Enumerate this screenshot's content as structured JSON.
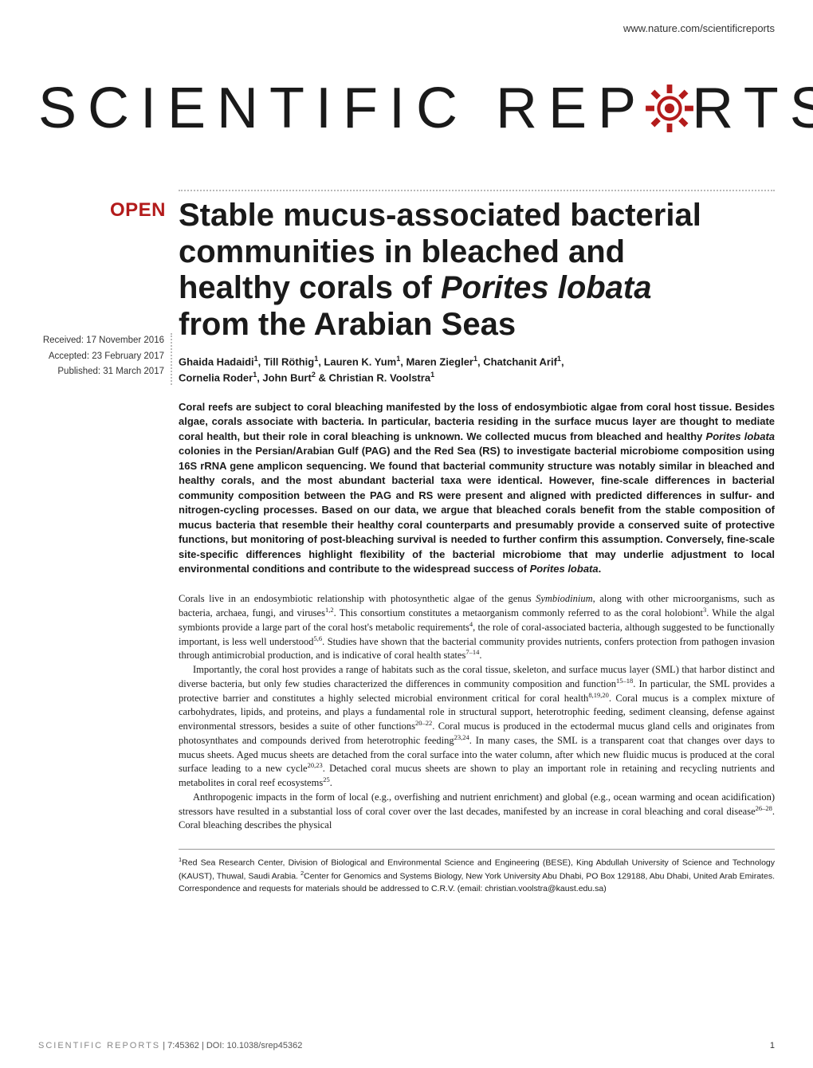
{
  "header": {
    "url": "www.nature.com/scientificreports"
  },
  "logo": {
    "part1": "SCIENTIFIC",
    "part2": "REP",
    "part3": "RTS",
    "gear_color": "#b31b1b"
  },
  "badge": {
    "open": "OPEN"
  },
  "dates": {
    "received": "Received: 17 November 2016",
    "accepted": "Accepted: 23 February 2017",
    "published": "Published: 31 March 2017"
  },
  "article": {
    "title_l1": "Stable mucus-associated bacterial",
    "title_l2": "communities in bleached and",
    "title_l3_pre": "healthy corals of ",
    "title_l3_em": "Porites lobata",
    "title_l4": "from the Arabian Seas",
    "authors_line1_html": "Ghaida Hadaidi<sup>1</sup>, Till Röthig<sup>1</sup>, Lauren K. Yum<sup>1</sup>, Maren Ziegler<sup>1</sup>, Chatchanit Arif<sup>1</sup>,",
    "authors_line2_html": "Cornelia Roder<sup>1</sup>, John Burt<sup>2</sup> & Christian R. Voolstra<sup>1</sup>",
    "abstract": "Coral reefs are subject to coral bleaching manifested by the loss of endosymbiotic algae from coral host tissue. Besides algae, corals associate with bacteria. In particular, bacteria residing in the surface mucus layer are thought to mediate coral health, but their role in coral bleaching is unknown. We collected mucus from bleached and healthy <em>Porites lobata</em> colonies in the Persian/Arabian Gulf (PAG) and the Red Sea (RS) to investigate bacterial microbiome composition using 16S rRNA gene amplicon sequencing. We found that bacterial community structure was notably similar in bleached and healthy corals, and the most abundant bacterial taxa were identical. However, fine-scale differences in bacterial community composition between the PAG and RS were present and aligned with predicted differences in sulfur- and nitrogen-cycling processes. Based on our data, we argue that bleached corals benefit from the stable composition of mucus bacteria that resemble their healthy coral counterparts and presumably provide a conserved suite of protective functions, but monitoring of post-bleaching survival is needed to further confirm this assumption. Conversely, fine-scale site-specific differences highlight flexibility of the bacterial microbiome that may underlie adjustment to local environmental conditions and contribute to the widespread success of <em>Porites lobata</em>.",
    "para1": "Corals live in an endosymbiotic relationship with photosynthetic algae of the genus <em>Symbiodinium</em>, along with other microorganisms, such as bacteria, archaea, fungi, and viruses<sup>1,2</sup>. This consortium constitutes a metaorganism commonly referred to as the coral holobiont<sup>3</sup>. While the algal symbionts provide a large part of the coral host's metabolic requirements<sup>4</sup>, the role of coral-associated bacteria, although suggested to be functionally important, is less well understood<sup>5,6</sup>. Studies have shown that the bacterial community provides nutrients, confers protection from pathogen invasion through antimicrobial production, and is indicative of coral health states<sup>7–14</sup>.",
    "para2": "Importantly, the coral host provides a range of habitats such as the coral tissue, skeleton, and surface mucus layer (SML) that harbor distinct and diverse bacteria, but only few studies characterized the differences in community composition and function<sup>15–18</sup>. In particular, the SML provides a protective barrier and constitutes a highly selected microbial environment critical for coral health<sup>8,19,20</sup>. Coral mucus is a complex mixture of carbohydrates, lipids, and proteins, and plays a fundamental role in structural support, heterotrophic feeding, sediment cleansing, defense against environmental stressors, besides a suite of other functions<sup>20–22</sup>. Coral mucus is produced in the ectodermal mucus gland cells and originates from photosynthates and compounds derived from heterotrophic feeding<sup>23,24</sup>. In many cases, the SML is a transparent coat that changes over days to mucus sheets. Aged mucus sheets are detached from the coral surface into the water column, after which new fluidic mucus is produced at the coral surface leading to a new cycle<sup>20,23</sup>. Detached coral mucus sheets are shown to play an important role in retaining and recycling nutrients and metabolites in coral reef ecosystems<sup>25</sup>.",
    "para3": "Anthropogenic impacts in the form of local (e.g., overfishing and nutrient enrichment) and global (e.g., ocean warming and ocean acidification) stressors have resulted in a substantial loss of coral cover over the last decades, manifested by an increase in coral bleaching and coral disease<sup>26–28</sup>. Coral bleaching describes the physical",
    "affiliations": "<sup>1</sup>Red Sea Research Center, Division of Biological and Environmental Science and Engineering (BESE), King Abdullah University of Science and Technology (KAUST), Thuwal, Saudi Arabia. <sup>2</sup>Center for Genomics and Systems Biology, New York University Abu Dhabi, PO Box 129188, Abu Dhabi, United Arab Emirates. Correspondence and requests for materials should be addressed to C.R.V. (email: christian.voolstra@kaust.edu.sa)"
  },
  "footer": {
    "journal": "SCIENTIFIC REPORTS",
    "citation": " | 7:45362 | DOI: 10.1038/srep45362",
    "page": "1"
  }
}
